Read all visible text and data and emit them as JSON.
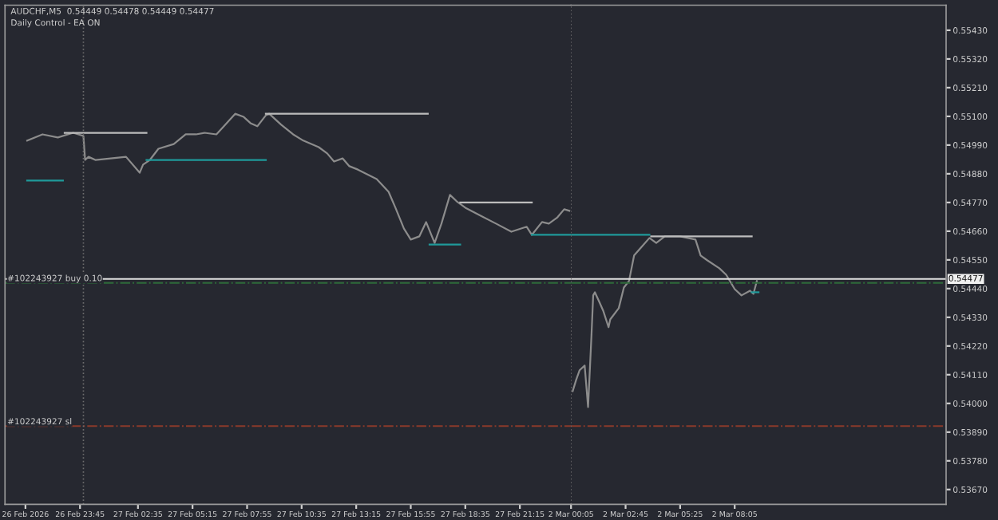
{
  "chart_data": [
    {
      "type": "line",
      "title": "AUDCHF,M5  0.54449 0.54478 0.54449 0.54477",
      "subtitle": "Daily Control - EA ON",
      "xlim": [
        "2026-02-26T20:05",
        "2026-02-27T23:45"
      ],
      "ylim": [
        0.53613,
        0.55526
      ],
      "tick_labels": "x",
      "xticks": [
        {
          "value": "2026-02-26T21:05",
          "label": "26 Feb 2026"
        },
        {
          "value": "2026-02-26T23:45",
          "label": "26 Feb 23:45"
        },
        {
          "value": "2026-02-27T02:35",
          "label": "27 Feb 02:35"
        },
        {
          "value": "2026-02-27T05:15",
          "label": "27 Feb 05:15"
        },
        {
          "value": "2026-02-27T07:55",
          "label": "27 Feb 07:55"
        },
        {
          "value": "2026-02-27T10:35",
          "label": "27 Feb 10:35"
        },
        {
          "value": "2026-02-27T13:15",
          "label": "27 Feb 13:15"
        },
        {
          "value": "2026-02-27T15:55",
          "label": "27 Feb 15:55"
        },
        {
          "value": "2026-02-27T18:35",
          "label": "27 Feb 18:35"
        },
        {
          "value": "2026-02-27T21:15",
          "label": "27 Feb 21:15"
        }
      ],
      "grid": false,
      "line_style": "solid",
      "marker": "none",
      "series": [
        {
          "color": "#8c8c8c",
          "x": [
            "2026-02-26T21:10",
            "2026-02-26T21:55",
            "2026-02-26T22:40",
            "2026-02-26T23:25",
            "2026-02-26T23:55",
            "2026-02-27T00:00",
            "2026-02-27T00:10",
            "2026-02-27T00:30",
            "2026-02-27T01:15",
            "2026-02-27T02:00",
            "2026-02-27T02:40",
            "2026-02-27T02:50",
            "2026-02-27T03:10",
            "2026-02-27T03:35",
            "2026-02-27T04:20",
            "2026-02-27T04:55",
            "2026-02-27T05:25",
            "2026-02-27T05:50",
            "2026-02-27T06:25",
            "2026-02-27T06:55",
            "2026-02-27T07:20",
            "2026-02-27T07:45",
            "2026-02-27T08:05",
            "2026-02-27T08:25",
            "2026-02-27T08:50",
            "2026-02-27T09:00",
            "2026-02-27T09:35",
            "2026-02-27T10:10",
            "2026-02-27T10:40",
            "2026-02-27T11:25",
            "2026-02-27T11:50",
            "2026-02-27T12:10",
            "2026-02-27T12:35",
            "2026-02-27T12:55",
            "2026-02-27T13:20",
            "2026-02-27T14:15",
            "2026-02-27T14:50",
            "2026-02-27T15:10",
            "2026-02-27T15:35",
            "2026-02-27T15:55",
            "2026-02-27T16:20",
            "2026-02-27T16:40",
            "2026-02-27T17:05",
            "2026-02-27T17:25",
            "2026-02-27T17:50",
            "2026-02-27T18:10",
            "2026-02-27T18:35",
            "2026-02-27T19:20",
            "2026-02-27T20:05",
            "2026-02-27T20:50",
            "2026-02-27T21:35",
            "2026-02-27T21:50",
            "2026-02-27T22:20",
            "2026-02-27T22:40",
            "2026-02-27T23:05",
            "2026-02-27T23:25",
            "2026-02-27T23:40"
          ],
          "values": [
            0.55007,
            0.55031,
            0.55019,
            0.55037,
            0.55025,
            0.54933,
            0.54945,
            0.54933,
            0.54939,
            0.54945,
            0.54884,
            0.54915,
            0.54933,
            0.54976,
            0.54994,
            0.55031,
            0.55031,
            0.55037,
            0.55031,
            0.55074,
            0.5511,
            0.55098,
            0.55074,
            0.55062,
            0.55104,
            0.5511,
            0.55068,
            0.55031,
            0.55007,
            0.54982,
            0.54958,
            0.54927,
            0.54939,
            0.54909,
            0.54896,
            0.5486,
            0.54811,
            0.5475,
            0.5467,
            0.54628,
            0.5464,
            0.54695,
            0.54615,
            0.54689,
            0.54799,
            0.54774,
            0.5475,
            0.54719,
            0.54689,
            0.54658,
            0.54677,
            0.54646,
            0.54695,
            0.54689,
            0.54713,
            0.54744,
            0.54738
          ]
        },
        {
          "color": "#bdbdbd",
          "x": [
            "2026-02-26T23:00",
            "2026-02-27T03:00"
          ],
          "values": [
            0.55037,
            0.55037
          ]
        },
        {
          "color": "#bdbdbd",
          "x": [
            "2026-02-27T08:50",
            "2026-02-27T16:45"
          ],
          "values": [
            0.5511,
            0.5511
          ]
        },
        {
          "color": "#bdbdbd",
          "x": [
            "2026-02-27T18:20",
            "2026-02-27T21:50"
          ],
          "values": [
            0.5477,
            0.5477
          ]
        },
        {
          "color": "#1f9a9a",
          "x": [
            "2026-02-26T21:10",
            "2026-02-26T22:55"
          ],
          "values": [
            0.54854,
            0.54854
          ]
        },
        {
          "color": "#1f9a9a",
          "x": [
            "2026-02-27T03:00",
            "2026-02-27T08:50"
          ],
          "values": [
            0.54933,
            0.54933
          ]
        },
        {
          "color": "#1f9a9a",
          "x": [
            "2026-02-27T16:50",
            "2026-02-27T18:20"
          ],
          "values": [
            0.54609,
            0.54609
          ]
        },
        {
          "color": "#1f9a9a",
          "x": [
            "2026-02-27T21:50",
            "2026-02-27T23:45"
          ],
          "values": [
            0.54646,
            0.54646
          ]
        }
      ],
      "ref_lines": [
        {
          "axis": "y",
          "value": 0.54477,
          "color": "#e0e0e0",
          "line_style": "solid"
        },
        {
          "axis": "y",
          "value": 0.54462,
          "label": "#102243927 buy 0.10",
          "color": "#2e6b3a",
          "line_style": "dashdot"
        },
        {
          "axis": "y",
          "value": 0.53913,
          "label": "#102243927 sl",
          "color": "#8a3a2a",
          "line_style": "dashdot"
        },
        {
          "axis": "x",
          "value": "2026-02-26T23:55",
          "color": "#6e6e6e",
          "line_style": "dotted"
        }
      ]
    },
    {
      "type": "line",
      "xlim": [
        "2026-03-02T00:05",
        "2026-03-02T18:25"
      ],
      "ylim": [
        0.53613,
        0.55526
      ],
      "xticks": [
        {
          "value": "2026-03-02T00:05",
          "label": "2 Mar 00:05"
        },
        {
          "value": "2026-03-02T02:45",
          "label": "2 Mar 02:45"
        },
        {
          "value": "2026-03-02T05:25",
          "label": "2 Mar 05:25"
        },
        {
          "value": "2026-03-02T08:05",
          "label": "2 Mar 08:05"
        }
      ],
      "yticks": [
        {
          "value": 0.5367,
          "label": "0.53670"
        },
        {
          "value": 0.5378,
          "label": "0.53780"
        },
        {
          "value": 0.5389,
          "label": "0.53890"
        },
        {
          "value": 0.54,
          "label": "0.54000"
        },
        {
          "value": 0.5411,
          "label": "0.54110"
        },
        {
          "value": 0.5422,
          "label": "0.54220"
        },
        {
          "value": 0.5433,
          "label": "0.54330"
        },
        {
          "value": 0.5444,
          "label": "0.54440"
        },
        {
          "value": 0.5455,
          "label": "0.54550"
        },
        {
          "value": 0.5466,
          "label": "0.54660"
        },
        {
          "value": 0.5477,
          "label": "0.54770"
        },
        {
          "value": 0.5488,
          "label": "0.54880"
        },
        {
          "value": 0.5499,
          "label": "0.54990"
        },
        {
          "value": 0.551,
          "label": "0.55100"
        },
        {
          "value": 0.5521,
          "label": "0.55210"
        },
        {
          "value": 0.5532,
          "label": "0.55320"
        },
        {
          "value": 0.5543,
          "label": "0.55430"
        }
      ],
      "grid": false,
      "line_style": "solid",
      "marker": "none",
      "series": [
        {
          "color": "#8c8c8c",
          "x": [
            "2026-03-02T00:10",
            "2026-03-02T00:20",
            "2026-03-02T00:30",
            "2026-03-02T00:45",
            "2026-03-02T00:55",
            "2026-03-02T01:05",
            "2026-03-02T01:10",
            "2026-03-02T01:15",
            "2026-03-02T01:30",
            "2026-03-02T01:40",
            "2026-03-02T01:55",
            "2026-03-02T02:00",
            "2026-03-02T02:25",
            "2026-03-02T02:40",
            "2026-03-02T02:55",
            "2026-03-02T03:10",
            "2026-03-02T03:30",
            "2026-03-02T03:55",
            "2026-03-02T04:15",
            "2026-03-02T04:40",
            "2026-03-02T05:25",
            "2026-03-02T06:10",
            "2026-03-02T06:25",
            "2026-03-02T06:45",
            "2026-03-02T07:20",
            "2026-03-02T07:40",
            "2026-03-02T08:05",
            "2026-03-02T08:25",
            "2026-03-02T08:50",
            "2026-03-02T09:00",
            "2026-03-02T09:10"
          ],
          "values": [
            0.54047,
            0.5409,
            0.54127,
            0.54145,
            0.53986,
            0.54261,
            0.54414,
            0.54426,
            0.54383,
            0.54353,
            0.54292,
            0.54322,
            0.54365,
            0.54444,
            0.54469,
            0.54567,
            0.54597,
            0.54634,
            0.54615,
            0.5464,
            0.5464,
            0.54628,
            0.54567,
            0.54548,
            0.54518,
            0.54493,
            0.54438,
            0.54414,
            0.54432,
            0.5442,
            0.54469
          ]
        },
        {
          "color": "#bdbdbd",
          "x": [
            "2026-03-02T04:00",
            "2026-03-02T08:55"
          ],
          "values": [
            0.5464,
            0.5464
          ]
        },
        {
          "color": "#1f9a9a",
          "x": [
            "2026-03-02T00:05",
            "2026-03-02T03:55"
          ],
          "values": [
            0.54646,
            0.54646
          ]
        },
        {
          "color": "#1f9a9a",
          "x": [
            "2026-03-02T08:55",
            "2026-03-02T09:15"
          ],
          "values": [
            0.54426,
            0.54426
          ]
        }
      ],
      "ref_lines": [
        {
          "axis": "y",
          "value": 0.54477,
          "label": "0.54477",
          "color": "#e0e0e0",
          "line_style": "solid"
        },
        {
          "axis": "y",
          "value": 0.54462,
          "color": "#2e6b3a",
          "line_style": "dashdot"
        },
        {
          "axis": "y",
          "value": 0.53913,
          "color": "#8a3a2a",
          "line_style": "dashdot"
        },
        {
          "axis": "x",
          "value": "2026-03-02T00:05",
          "color": "#6e6e6e",
          "line_style": "dotted"
        }
      ]
    }
  ]
}
